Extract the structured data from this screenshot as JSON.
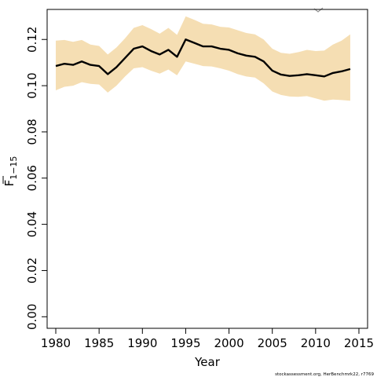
{
  "chart_data": {
    "type": "line",
    "xlabel": "Year",
    "ylabel_main": "F",
    "ylabel_sub": "1−15",
    "footnote": "stockassessment.org, HerBenchmrk22, r7769",
    "xlim": [
      1979,
      2016
    ],
    "ylim": [
      -0.005,
      0.133
    ],
    "xticks": [
      1980,
      1985,
      1990,
      1995,
      2000,
      2005,
      2010,
      2015
    ],
    "yticks": [
      "0.00",
      "0.02",
      "0.04",
      "0.06",
      "0.08",
      "0.10",
      "0.12"
    ],
    "band_color": "#f5deb3",
    "line_color": "#000000",
    "x": [
      1980,
      1981,
      1982,
      1983,
      1984,
      1985,
      1986,
      1987,
      1988,
      1989,
      1990,
      1991,
      1992,
      1993,
      1994,
      1995,
      1996,
      1997,
      1998,
      1999,
      2000,
      2001,
      2002,
      2003,
      2004,
      2005,
      2006,
      2007,
      2008,
      2009,
      2010,
      2011,
      2012,
      2013,
      2014
    ],
    "series": [
      {
        "values": [
          0.1085,
          0.1095,
          0.109,
          0.1105,
          0.109,
          0.1085,
          0.105,
          0.108,
          0.112,
          0.116,
          0.117,
          0.115,
          0.1135,
          0.1155,
          0.1125,
          0.12,
          0.1185,
          0.117,
          0.117,
          0.116,
          0.1155,
          0.114,
          0.113,
          0.1125,
          0.1105,
          0.1065,
          0.1048,
          0.1042,
          0.1045,
          0.105,
          0.1045,
          0.104,
          0.1055,
          0.1062,
          0.1072
        ]
      }
    ],
    "band_lower": [
      0.098,
      0.0995,
      0.1,
      0.1015,
      0.1008,
      0.1005,
      0.097,
      0.1,
      0.104,
      0.1075,
      0.108,
      0.1065,
      0.1052,
      0.107,
      0.1045,
      0.1105,
      0.1095,
      0.1085,
      0.1083,
      0.1075,
      0.1065,
      0.105,
      0.104,
      0.1035,
      0.101,
      0.0975,
      0.096,
      0.0953,
      0.0952,
      0.0955,
      0.0945,
      0.0935,
      0.094,
      0.0938,
      0.0935
    ],
    "band_upper": [
      0.1195,
      0.1198,
      0.119,
      0.1198,
      0.1178,
      0.1172,
      0.1135,
      0.1165,
      0.1205,
      0.125,
      0.1262,
      0.1245,
      0.1225,
      0.125,
      0.122,
      0.13,
      0.1285,
      0.1268,
      0.1265,
      0.1255,
      0.1252,
      0.124,
      0.1228,
      0.1222,
      0.12,
      0.116,
      0.1142,
      0.1138,
      0.1145,
      0.1155,
      0.115,
      0.1152,
      0.1178,
      0.1195,
      0.1222
    ]
  }
}
